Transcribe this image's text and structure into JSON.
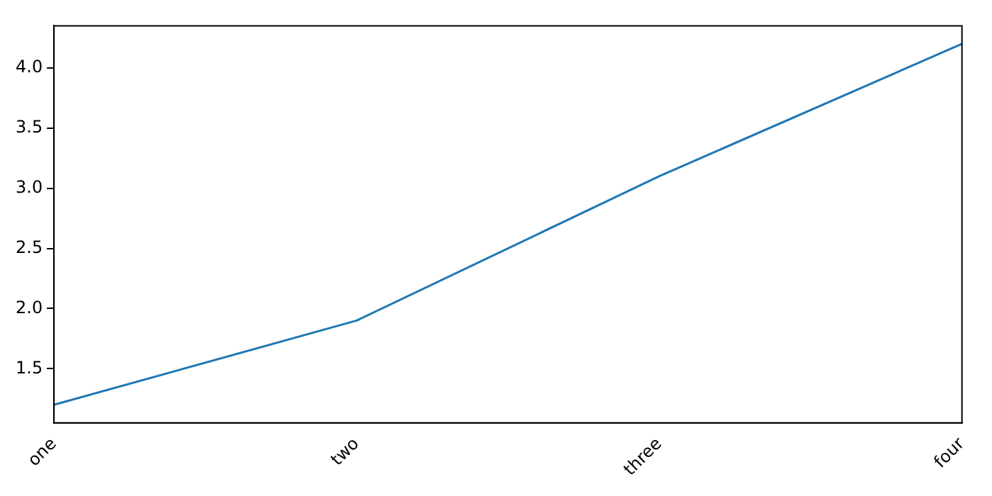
{
  "chart_data": {
    "type": "line",
    "categories": [
      "one",
      "two",
      "three",
      "four"
    ],
    "series": [
      {
        "color": "#1f77b4",
        "values": [
          1.2,
          1.9,
          3.1,
          4.2
        ]
      }
    ],
    "ylim": [
      1.05,
      4.35
    ],
    "yticks": [
      {
        "value": 1.5,
        "label": "1.5"
      },
      {
        "value": 2,
        "label": "2.0"
      },
      {
        "value": 2.5,
        "label": "2.5"
      },
      {
        "value": 3,
        "label": "3.0"
      },
      {
        "value": 3.5,
        "label": "3.5"
      },
      {
        "value": 4,
        "label": "4.0"
      }
    ],
    "grid": false,
    "legend": false,
    "marker": "none",
    "line_style": "solid"
  }
}
